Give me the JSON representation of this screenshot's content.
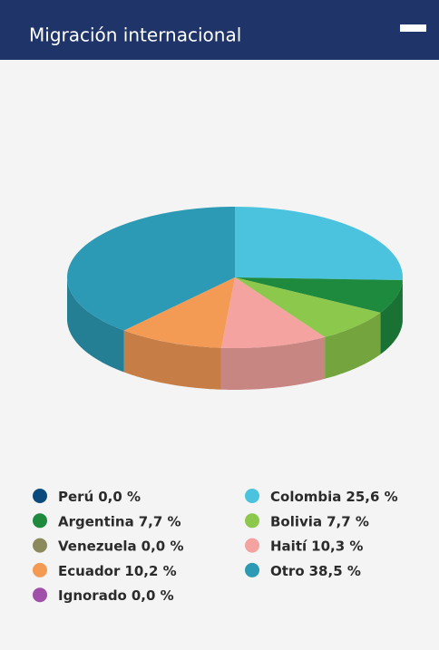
{
  "chart_data": {
    "type": "pie3d",
    "title": "Migración internacional",
    "categories": [
      "Perú",
      "Argentina",
      "Venezuela",
      "Ecuador",
      "Ignorado",
      "Colombia",
      "Bolivia",
      "Haití",
      "Otro"
    ],
    "values": [
      0.0,
      7.7,
      0.0,
      10.2,
      0.0,
      25.6,
      7.7,
      10.3,
      38.5
    ],
    "value_labels": [
      "0,0 %",
      "7,7 %",
      "0,0 %",
      "10,2 %",
      "0,0 %",
      "25,6 %",
      "7,7 %",
      "10,3 %",
      "38,5 %"
    ],
    "colors": [
      "#0b4a7d",
      "#1e8a3e",
      "#8a8a5c",
      "#f39a55",
      "#a050a8",
      "#4cc3de",
      "#8cc84b",
      "#f4a3a0",
      "#2c9ab5"
    ]
  }
}
